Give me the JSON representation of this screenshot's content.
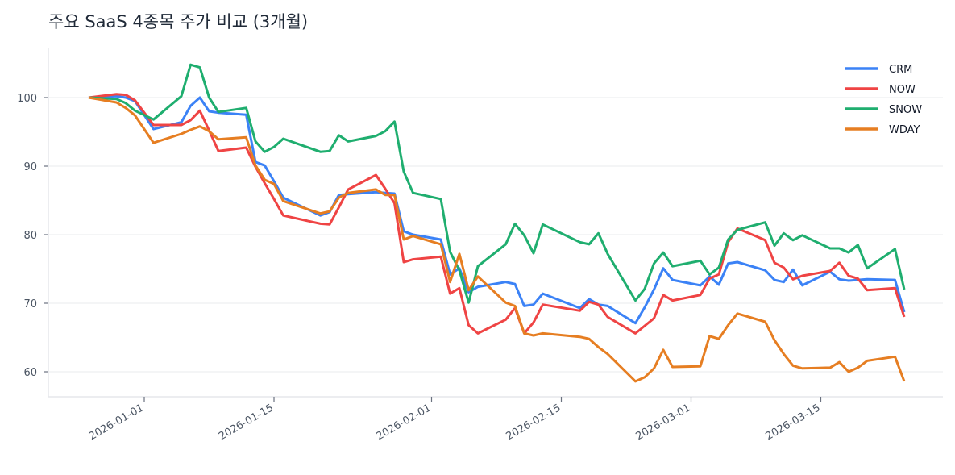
{
  "chart_data": {
    "type": "line",
    "title": "주요 SaaS 4종목 주가 비교 (3개월)",
    "xlabel": "",
    "ylabel": "",
    "grid": "horizontal",
    "legend_position": "top-right",
    "xlim": [
      "2025-12-21",
      "2026-03-28"
    ],
    "ylim": [
      56.4,
      107.2
    ],
    "yticks": [
      60,
      70,
      80,
      90,
      100
    ],
    "xticks": [
      "2026-01-01",
      "2026-01-15",
      "2026-02-01",
      "2026-02-15",
      "2026-03-01",
      "2026-03-15"
    ],
    "x": [
      "2025-12-26",
      "2025-12-29",
      "2025-12-30",
      "2025-12-31",
      "2026-01-02",
      "2026-01-05",
      "2026-01-06",
      "2026-01-07",
      "2026-01-08",
      "2026-01-09",
      "2026-01-12",
      "2026-01-13",
      "2026-01-14",
      "2026-01-15",
      "2026-01-16",
      "2026-01-20",
      "2026-01-21",
      "2026-01-22",
      "2026-01-23",
      "2026-01-26",
      "2026-01-27",
      "2026-01-28",
      "2026-01-29",
      "2026-01-30",
      "2026-02-02",
      "2026-02-03",
      "2026-02-04",
      "2026-02-05",
      "2026-02-06",
      "2026-02-09",
      "2026-02-10",
      "2026-02-11",
      "2026-02-12",
      "2026-02-13",
      "2026-02-17",
      "2026-02-18",
      "2026-02-19",
      "2026-02-20",
      "2026-02-23",
      "2026-02-24",
      "2026-02-25",
      "2026-02-26",
      "2026-02-27",
      "2026-03-02",
      "2026-03-03",
      "2026-03-04",
      "2026-03-05",
      "2026-03-06",
      "2026-03-09",
      "2026-03-10",
      "2026-03-11",
      "2026-03-12",
      "2026-03-13",
      "2026-03-16",
      "2026-03-17",
      "2026-03-18",
      "2026-03-19",
      "2026-03-20",
      "2026-03-23",
      "2026-03-24"
    ],
    "series": [
      {
        "name": "CRM",
        "color": "#3b82f6",
        "values": [
          100,
          100.2,
          100,
          99.5,
          95.4,
          96.4,
          98.8,
          100,
          98.0,
          97.8,
          97.5,
          90.6,
          90.1,
          87.8,
          85.4,
          82.8,
          83.3,
          85.8,
          85.9,
          86.2,
          86.1,
          86.0,
          80.5,
          80.0,
          79.3,
          74.2,
          75.1,
          71.6,
          72.4,
          73.1,
          72.8,
          69.6,
          69.8,
          71.4,
          69.3,
          70.6,
          69.8,
          69.6,
          67.1,
          69.4,
          72.0,
          75.1,
          73.4,
          72.6,
          73.9,
          72.7,
          75.8,
          76.0,
          74.8,
          73.4,
          73.1,
          74.9,
          72.6,
          74.6,
          73.5,
          73.3,
          73.4,
          73.5,
          73.4,
          68.7
        ]
      },
      {
        "name": "NOW",
        "color": "#ef4444",
        "values": [
          100,
          100.5,
          100.4,
          99.6,
          96.0,
          96.0,
          96.7,
          98.1,
          95.2,
          92.2,
          92.7,
          89.9,
          87.5,
          85.2,
          82.8,
          81.6,
          81.5,
          84.0,
          86.6,
          88.7,
          86.7,
          84.6,
          76.0,
          76.4,
          76.8,
          71.4,
          72.2,
          66.8,
          65.6,
          67.6,
          69.3,
          65.6,
          67.2,
          69.8,
          68.9,
          70.2,
          69.8,
          68.0,
          65.6,
          66.7,
          67.8,
          71.2,
          70.4,
          71.2,
          73.6,
          74.2,
          78.9,
          80.9,
          79.2,
          75.9,
          75.2,
          73.5,
          74.0,
          74.7,
          75.9,
          74.0,
          73.6,
          71.9,
          72.2,
          68.0
        ]
      },
      {
        "name": "SNOW",
        "color": "#1fae6f",
        "values": [
          100,
          99.8,
          99.2,
          98.1,
          96.8,
          100.2,
          104.8,
          104.4,
          100,
          97.9,
          98.5,
          93.6,
          92.1,
          92.8,
          94.0,
          92.1,
          92.2,
          94.5,
          93.6,
          94.4,
          95.1,
          96.5,
          89.2,
          86.1,
          85.2,
          77.5,
          74.8,
          70.1,
          75.4,
          78.6,
          81.6,
          79.9,
          77.3,
          81.5,
          78.9,
          78.6,
          80.2,
          77.2,
          70.4,
          72.1,
          75.8,
          77.4,
          75.4,
          76.2,
          74.2,
          75.2,
          79.3,
          80.7,
          81.8,
          78.4,
          80.2,
          79.2,
          79.9,
          78.0,
          78.0,
          77.4,
          78.5,
          75.1,
          77.9,
          72.0
        ]
      },
      {
        "name": "WDAY",
        "color": "#e67e22",
        "values": [
          100,
          99.3,
          98.5,
          97.4,
          93.4,
          94.7,
          95.3,
          95.8,
          95.1,
          93.9,
          94.2,
          90.1,
          88.0,
          87.4,
          84.9,
          83.1,
          83.4,
          85.4,
          86.1,
          86.6,
          85.8,
          85.8,
          79.3,
          79.8,
          78.6,
          73.1,
          77.2,
          71.9,
          73.9,
          70.1,
          69.6,
          65.6,
          65.3,
          65.6,
          65.1,
          64.8,
          63.6,
          62.6,
          58.6,
          59.2,
          60.5,
          63.2,
          60.7,
          60.8,
          65.2,
          64.8,
          66.8,
          68.5,
          67.3,
          64.6,
          62.6,
          60.9,
          60.5,
          60.6,
          61.4,
          60.0,
          60.6,
          61.6,
          62.2,
          58.6
        ]
      }
    ]
  }
}
